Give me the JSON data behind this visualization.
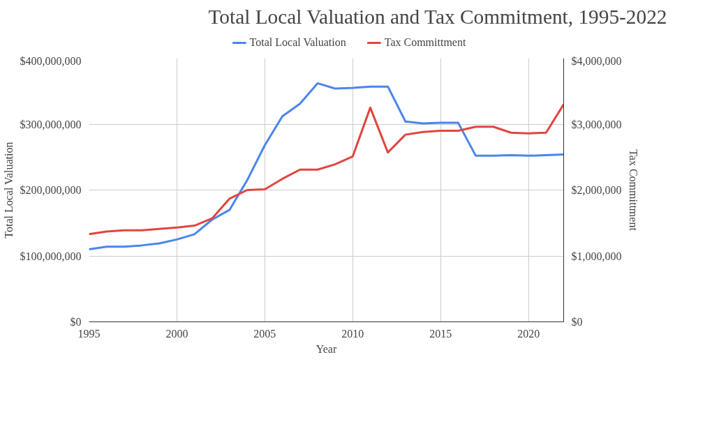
{
  "chart_data": {
    "type": "line",
    "title": "Total Local Valuation and Tax Commitment, 1995-2022",
    "xlabel": "Year",
    "ylabel": "Total Local Valuation",
    "y2label": "Tax Committment",
    "x": [
      1995,
      1996,
      1997,
      1998,
      1999,
      2000,
      2001,
      2002,
      2003,
      2004,
      2005,
      2006,
      2007,
      2008,
      2009,
      2010,
      2011,
      2012,
      2013,
      2014,
      2015,
      2016,
      2017,
      2018,
      2019,
      2020,
      2021,
      2022
    ],
    "series": [
      {
        "name": "Total Local Valuation",
        "color": "#4a86e8",
        "values": [
          110000000,
          114000000,
          114000000,
          116000000,
          119000000,
          125000000,
          133000000,
          155000000,
          170000000,
          215000000,
          268000000,
          312000000,
          331000000,
          362000000,
          354000000,
          355000000,
          357000000,
          357000000,
          304000000,
          301000000,
          302000000,
          302000000,
          252000000,
          252000000,
          253000000,
          252000000,
          253000000,
          254000000
        ]
      },
      {
        "name": "Tax Committment",
        "color": "#e0463f",
        "axis": "y2",
        "values": [
          1330000,
          1370000,
          1390000,
          1390000,
          1410000,
          1430000,
          1460000,
          1570000,
          1870000,
          2000000,
          2010000,
          2170000,
          2310000,
          2310000,
          2390000,
          2510000,
          3250000,
          2570000,
          2840000,
          2880000,
          2900000,
          2900000,
          2960000,
          2960000,
          2870000,
          2860000,
          2870000,
          3300000
        ]
      }
    ],
    "xlim": [
      1995,
      2022
    ],
    "xticks": [
      1995,
      2000,
      2005,
      2010,
      2015,
      2020
    ],
    "ylim": [
      0,
      400000000
    ],
    "yticks": [
      {
        "value": 0,
        "label": "$0"
      },
      {
        "value": 100000000,
        "label": "$100,000,000"
      },
      {
        "value": 200000000,
        "label": "$200,000,000"
      },
      {
        "value": 300000000,
        "label": "$300,000,000"
      },
      {
        "value": 400000000,
        "label": "$400,000,000"
      }
    ],
    "y2lim": [
      0,
      4000000
    ],
    "y2ticks": [
      {
        "value": 0,
        "label": "$0"
      },
      {
        "value": 1000000,
        "label": "$1,000,000"
      },
      {
        "value": 2000000,
        "label": "$2,000,000"
      },
      {
        "value": 3000000,
        "label": "$3,000,000"
      },
      {
        "value": 4000000,
        "label": "$4,000,000"
      }
    ],
    "grid": true,
    "legend": "top",
    "marker": "none",
    "line_style": "solid"
  }
}
